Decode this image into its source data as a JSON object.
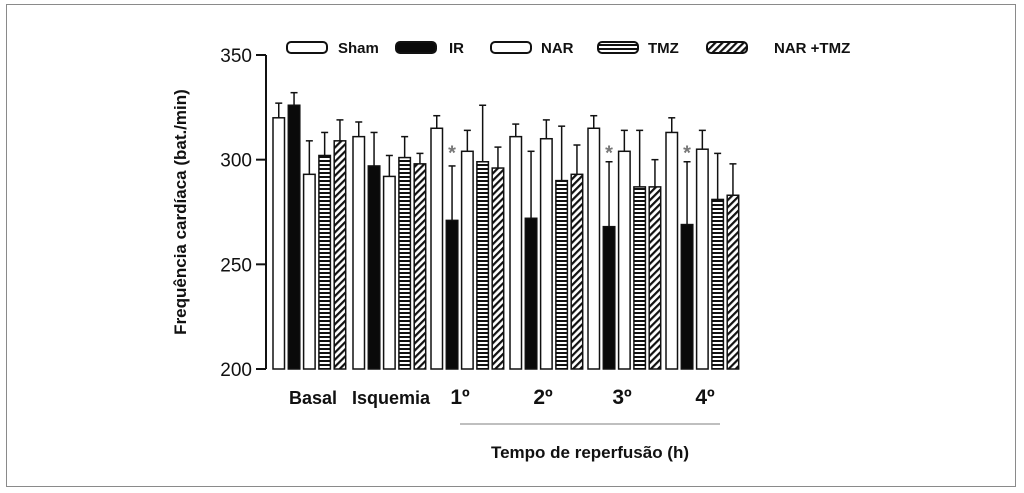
{
  "chart_data": {
    "type": "bar",
    "title": "",
    "ylabel": "Frequência cardíaca (bat./min)",
    "xlabel": "Tempo de reperfusão (h)",
    "ylim": [
      200,
      350
    ],
    "yticks": [
      "200",
      "250",
      "300",
      "350"
    ],
    "categories": [
      "Basal",
      "Isquemia",
      "1º",
      "2º",
      "3º",
      "4º"
    ],
    "series": [
      {
        "name": "Sham",
        "pattern": "white",
        "values": [
          320,
          311,
          315,
          311,
          315,
          313
        ],
        "errors": [
          7,
          7,
          6,
          6,
          6,
          7
        ]
      },
      {
        "name": "IR",
        "pattern": "black",
        "values": [
          326,
          297,
          271,
          272,
          268,
          269
        ],
        "errors": [
          6,
          16,
          26,
          32,
          31,
          30
        ]
      },
      {
        "name": "NAR",
        "pattern": "white",
        "values": [
          293,
          292,
          304,
          310,
          304,
          305
        ],
        "errors": [
          16,
          10,
          10,
          9,
          10,
          9
        ]
      },
      {
        "name": "TMZ",
        "pattern": "hstripe",
        "values": [
          302,
          301,
          299,
          290,
          287,
          281
        ],
        "errors": [
          11,
          10,
          27,
          26,
          27,
          22
        ]
      },
      {
        "name": "NAR +TMZ",
        "pattern": "diag",
        "values": [
          309,
          298,
          296,
          293,
          287,
          283
        ],
        "errors": [
          10,
          5,
          10,
          14,
          13,
          15
        ]
      }
    ],
    "significance": [
      {
        "category": "1º",
        "text": "*"
      },
      {
        "category": "3º",
        "text": "*"
      },
      {
        "category": "4º",
        "text": "*"
      }
    ],
    "legend_position": "top",
    "grid": false
  }
}
